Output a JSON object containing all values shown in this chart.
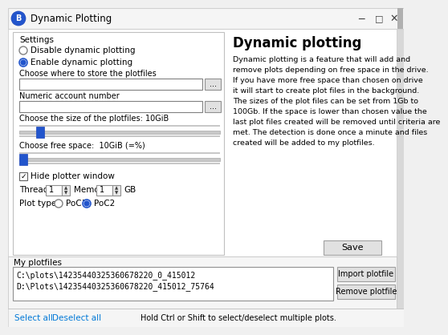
{
  "title_bar": "Dynamic Plotting",
  "bg_color": "#f0f0f0",
  "white": "#ffffff",
  "border_color": "#c0c0c0",
  "dark_border": "#808080",
  "text_color": "#000000",
  "blue_color": "#2255cc",
  "link_color": "#0078d7",
  "btn_color": "#e1e1e1",
  "slider_track": "#d0d0d0",
  "slider_blue": "#2255cc",
  "settings_label": "Settings",
  "radio1": "Disable dynamic plotting",
  "radio2": "Enable dynamic plotting",
  "label_path": "Choose where to store the plotfiles",
  "label_account": "Numeric account number",
  "label_size": "Choose the size of the plotfiles: 10GiB",
  "label_free": "Choose free space:  10GiB (=%)",
  "checkbox_label": "Hide plotter window",
  "threads_label": "Threads",
  "threads_val": "1",
  "memory_label": "Memory",
  "memory_val": "1",
  "gb_label": "GB",
  "plot_type_label": "Plot type:",
  "poc1_label": "PoC1",
  "poc2_label": "PoC2",
  "save_button": "Save",
  "my_plotfiles": "My plotfiles",
  "plotfile1": "C:\\plots\\14235440325360678220_0_415012",
  "plotfile2": "D:\\Plots\\14235440325360678220_415012_75764",
  "import_button": "Import plotfile",
  "remove_button": "Remove plotfile",
  "select_all": "Select all",
  "deselect_all": "Deselect all",
  "bottom_hint": "Hold Ctrl or Shift to select/deselect multiple plots.",
  "dynamic_title": "Dynamic plotting",
  "dynamic_lines": [
    "Dynamic plotting is a feature that will add and",
    "remove plots depending on free space in the drive.",
    "If you have more free space than chosen on drive",
    "it will start to create plot files in the background.",
    "The sizes of the plot files can be set from 1Gb to",
    "100Gb. If the space is lower than chosen value the",
    "last plot files created will be removed until criteria are",
    "met. The detection is done once a minute and files",
    "created will be added to my plotfiles."
  ]
}
